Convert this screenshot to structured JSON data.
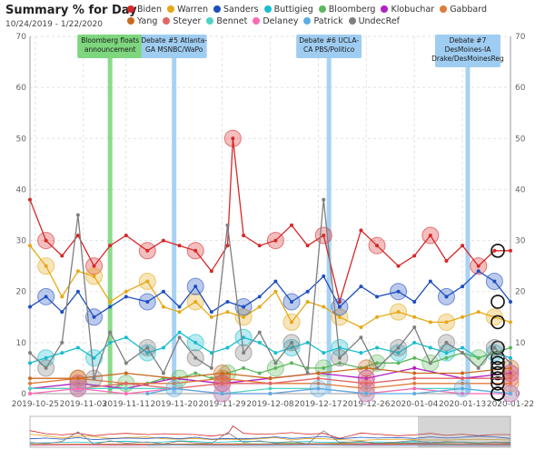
{
  "header": {
    "title": "Summary % for Day",
    "date_range": "10/24/2019 - 1/22/2020"
  },
  "chart_data": {
    "type": "line",
    "title": "Summary % for Day",
    "subtitle": "10/24/2019 - 1/22/2020",
    "ylim": [
      0,
      70
    ],
    "y_ticks": [
      0,
      10,
      20,
      30,
      40,
      50,
      60,
      70
    ],
    "x_tick_labels": [
      "2019-10-25",
      "2019-11-03",
      "2019-11-11",
      "2019-11-20",
      "2019-11-29",
      "2019-12-08",
      "2019-12-17",
      "2019-12-26",
      "2020-01-04",
      "2020-01-13",
      "2020-01-22"
    ],
    "x_start": "2019-10-24",
    "x_end": "2020-01-22",
    "grid": true,
    "legend_position": "top",
    "annotations": [
      {
        "date": "2019-11-08",
        "text": [
          "Bloomberg floats",
          "announcement"
        ],
        "color": "#7ed67e"
      },
      {
        "date": "2019-11-20",
        "text": [
          "Debate #5 Atlanta-",
          "GA MSNBC/WaPo"
        ],
        "color": "#9fcdf2"
      },
      {
        "date": "2019-12-19",
        "text": [
          "Debate #6 UCLA-",
          "CA PBS/Politico"
        ],
        "color": "#9fcdf2"
      },
      {
        "date": "2020-01-14",
        "text": [
          "Debate #7",
          "DesMoines-IA",
          "Drake/DesMoinesReg"
        ],
        "color": "#9fcdf2"
      }
    ],
    "series": [
      {
        "name": "Biden",
        "color": "#d62728",
        "x": [
          "2019-10-24",
          "2019-10-27",
          "2019-10-30",
          "2019-11-02",
          "2019-11-05",
          "2019-11-08",
          "2019-11-11",
          "2019-11-15",
          "2019-11-18",
          "2019-11-21",
          "2019-11-24",
          "2019-11-27",
          "2019-11-30",
          "2019-12-01",
          "2019-12-03",
          "2019-12-06",
          "2019-12-09",
          "2019-12-12",
          "2019-12-15",
          "2019-12-18",
          "2019-12-21",
          "2019-12-25",
          "2019-12-28",
          "2020-01-01",
          "2020-01-04",
          "2020-01-07",
          "2020-01-10",
          "2020-01-13",
          "2020-01-16",
          "2020-01-19",
          "2020-01-22"
        ],
        "values": [
          38,
          30,
          27,
          31,
          25,
          29,
          31,
          28,
          30,
          29,
          28,
          24,
          29,
          50,
          31,
          29,
          30,
          33,
          29,
          31,
          18,
          32,
          29,
          25,
          27,
          31,
          26,
          29,
          25,
          28,
          28
        ]
      },
      {
        "name": "Warren",
        "color": "#e6a817",
        "x": [
          "2019-10-24",
          "2019-10-27",
          "2019-10-30",
          "2019-11-02",
          "2019-11-05",
          "2019-11-08",
          "2019-11-11",
          "2019-11-15",
          "2019-11-18",
          "2019-11-21",
          "2019-11-24",
          "2019-11-27",
          "2019-11-30",
          "2019-12-03",
          "2019-12-06",
          "2019-12-09",
          "2019-12-12",
          "2019-12-15",
          "2019-12-18",
          "2019-12-21",
          "2019-12-25",
          "2019-12-28",
          "2020-01-01",
          "2020-01-04",
          "2020-01-07",
          "2020-01-10",
          "2020-01-13",
          "2020-01-16",
          "2020-01-19",
          "2020-01-22"
        ],
        "values": [
          29,
          25,
          19,
          24,
          23,
          18,
          20,
          22,
          17,
          16,
          18,
          15,
          16,
          15,
          17,
          20,
          14,
          18,
          17,
          15,
          13,
          15,
          16,
          15,
          14,
          14,
          15,
          16,
          15,
          14
        ]
      },
      {
        "name": "Sanders",
        "color": "#1f4fbf",
        "x": [
          "2019-10-24",
          "2019-10-27",
          "2019-10-30",
          "2019-11-02",
          "2019-11-05",
          "2019-11-08",
          "2019-11-11",
          "2019-11-15",
          "2019-11-18",
          "2019-11-21",
          "2019-11-24",
          "2019-11-27",
          "2019-11-30",
          "2019-12-03",
          "2019-12-06",
          "2019-12-09",
          "2019-12-12",
          "2019-12-15",
          "2019-12-18",
          "2019-12-21",
          "2019-12-25",
          "2019-12-28",
          "2020-01-01",
          "2020-01-04",
          "2020-01-07",
          "2020-01-10",
          "2020-01-13",
          "2020-01-16",
          "2020-01-19",
          "2020-01-22"
        ],
        "values": [
          17,
          19,
          16,
          20,
          15,
          17,
          19,
          18,
          20,
          17,
          21,
          16,
          18,
          17,
          19,
          22,
          18,
          20,
          23,
          17,
          21,
          19,
          20,
          18,
          22,
          19,
          21,
          24,
          22,
          18
        ]
      },
      {
        "name": "Buttigieg",
        "color": "#17becf",
        "x": [
          "2019-10-24",
          "2019-10-27",
          "2019-10-30",
          "2019-11-02",
          "2019-11-05",
          "2019-11-08",
          "2019-11-11",
          "2019-11-15",
          "2019-11-18",
          "2019-11-21",
          "2019-11-24",
          "2019-11-27",
          "2019-11-30",
          "2019-12-03",
          "2019-12-06",
          "2019-12-09",
          "2019-12-12",
          "2019-12-15",
          "2019-12-18",
          "2019-12-21",
          "2019-12-25",
          "2019-12-28",
          "2020-01-01",
          "2020-01-04",
          "2020-01-07",
          "2020-01-10",
          "2020-01-13",
          "2020-01-16",
          "2020-01-19",
          "2020-01-22"
        ],
        "values": [
          6,
          7,
          8,
          9,
          7,
          10,
          11,
          8,
          9,
          12,
          10,
          8,
          9,
          11,
          10,
          8,
          9,
          10,
          8,
          9,
          8,
          9,
          8,
          10,
          9,
          8,
          9,
          7,
          8,
          7
        ]
      },
      {
        "name": "Bloomberg",
        "color": "#5cb85c",
        "x": [
          "2019-11-08",
          "2019-11-11",
          "2019-11-15",
          "2019-11-18",
          "2019-11-21",
          "2019-11-24",
          "2019-11-27",
          "2019-11-30",
          "2019-12-03",
          "2019-12-06",
          "2019-12-09",
          "2019-12-12",
          "2019-12-15",
          "2019-12-18",
          "2019-12-21",
          "2019-12-25",
          "2019-12-28",
          "2020-01-01",
          "2020-01-04",
          "2020-01-07",
          "2020-01-10",
          "2020-01-13",
          "2020-01-16",
          "2020-01-19",
          "2020-01-22"
        ],
        "values": [
          1,
          2,
          2,
          3,
          3,
          4,
          3,
          4,
          5,
          4,
          5,
          6,
          5,
          5,
          6,
          5,
          6,
          6,
          7,
          6,
          7,
          8,
          7,
          8,
          9
        ]
      },
      {
        "name": "Klobuchar",
        "color": "#b21fc4",
        "x": [
          "2019-10-24",
          "2019-11-02",
          "2019-11-11",
          "2019-11-20",
          "2019-11-29",
          "2019-12-08",
          "2019-12-17",
          "2019-12-26",
          "2020-01-04",
          "2020-01-13",
          "2020-01-22"
        ],
        "values": [
          1,
          2,
          1,
          3,
          2,
          3,
          4,
          3,
          5,
          3,
          4
        ]
      },
      {
        "name": "Gabbard",
        "color": "#e07b39",
        "x": [
          "2019-10-24",
          "2019-11-02",
          "2019-11-11",
          "2019-11-20",
          "2019-11-29",
          "2019-12-08",
          "2019-12-17",
          "2019-12-26",
          "2020-01-04",
          "2020-01-13",
          "2020-01-22"
        ],
        "values": [
          2,
          3,
          2,
          2,
          3,
          2,
          2,
          1,
          2,
          2,
          2
        ]
      },
      {
        "name": "Yang",
        "color": "#c96a1f",
        "x": [
          "2019-10-24",
          "2019-11-02",
          "2019-11-11",
          "2019-11-20",
          "2019-11-29",
          "2019-12-08",
          "2019-12-17",
          "2019-12-26",
          "2020-01-04",
          "2020-01-13",
          "2020-01-22"
        ],
        "values": [
          3,
          3,
          4,
          3,
          4,
          3,
          4,
          5,
          4,
          4,
          5
        ]
      },
      {
        "name": "Steyer",
        "color": "#e06666",
        "x": [
          "2019-10-24",
          "2019-11-02",
          "2019-11-11",
          "2019-11-20",
          "2019-11-29",
          "2019-12-08",
          "2019-12-17",
          "2019-12-26",
          "2020-01-04",
          "2020-01-13",
          "2020-01-22"
        ],
        "values": [
          1,
          1,
          2,
          1,
          2,
          2,
          3,
          2,
          3,
          3,
          3
        ]
      },
      {
        "name": "Bennet",
        "color": "#4fd1c5",
        "x": [
          "2019-10-24",
          "2019-11-02",
          "2019-11-11",
          "2019-11-20",
          "2019-11-29",
          "2019-12-08",
          "2019-12-17",
          "2019-12-26",
          "2020-01-04",
          "2020-01-13",
          "2020-01-22"
        ],
        "values": [
          1,
          1,
          1,
          1,
          0,
          1,
          1,
          0,
          1,
          1,
          0
        ]
      },
      {
        "name": "Delaney",
        "color": "#ff69b4",
        "x": [
          "2019-10-24",
          "2019-11-02",
          "2019-11-11",
          "2019-11-20",
          "2019-11-29",
          "2019-12-08",
          "2019-12-17",
          "2019-12-26",
          "2020-01-04",
          "2020-01-13",
          "2020-01-22"
        ],
        "values": [
          0,
          1,
          0,
          1,
          0,
          0,
          1,
          0,
          1,
          0,
          0
        ]
      },
      {
        "name": "Patrick",
        "color": "#5dade2",
        "x": [
          "2019-11-15",
          "2019-11-20",
          "2019-11-29",
          "2019-12-08",
          "2019-12-17",
          "2019-12-26",
          "2020-01-04",
          "2020-01-13",
          "2020-01-22"
        ],
        "values": [
          0,
          1,
          0,
          0,
          1,
          0,
          0,
          1,
          0
        ]
      },
      {
        "name": "UndecRef",
        "color": "#7f7f7f",
        "x": [
          "2019-10-24",
          "2019-10-27",
          "2019-10-30",
          "2019-11-02",
          "2019-11-05",
          "2019-11-08",
          "2019-11-11",
          "2019-11-15",
          "2019-11-18",
          "2019-11-21",
          "2019-11-24",
          "2019-11-27",
          "2019-11-30",
          "2019-12-03",
          "2019-12-06",
          "2019-12-09",
          "2019-12-12",
          "2019-12-15",
          "2019-12-18",
          "2019-12-21",
          "2019-12-25",
          "2019-12-28",
          "2020-01-01",
          "2020-01-04",
          "2020-01-07",
          "2020-01-10",
          "2020-01-13",
          "2020-01-16",
          "2020-01-19",
          "2020-01-22"
        ],
        "values": [
          8,
          5,
          10,
          35,
          3,
          12,
          6,
          9,
          4,
          11,
          7,
          5,
          33,
          8,
          12,
          6,
          10,
          4,
          38,
          7,
          11,
          5,
          9,
          13,
          6,
          10,
          8,
          5,
          9,
          6
        ]
      }
    ]
  }
}
